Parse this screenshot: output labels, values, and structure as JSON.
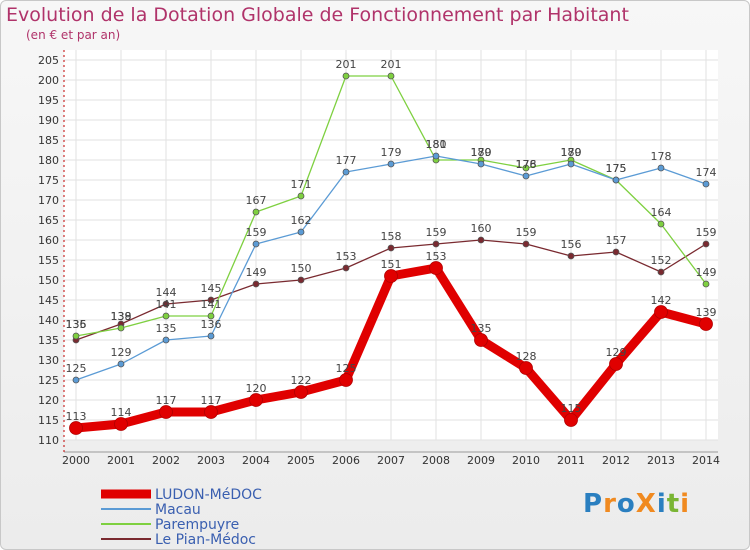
{
  "chart_data": {
    "type": "line",
    "title": "Evolution de la Dotation Globale de Fonctionnement par Habitant",
    "subtitle": "(en € et par an)",
    "x": [
      "2000",
      "2001",
      "2002",
      "2003",
      "2004",
      "2005",
      "2006",
      "2007",
      "2008",
      "2009",
      "2010",
      "2011",
      "2012",
      "2013",
      "2014"
    ],
    "ylim": [
      110,
      205
    ],
    "yticks": [
      110,
      115,
      120,
      125,
      130,
      135,
      140,
      145,
      150,
      155,
      160,
      165,
      170,
      175,
      180,
      185,
      190,
      195,
      200,
      205
    ],
    "grid": true,
    "legend_position": "bottom-left",
    "series": [
      {
        "name": "LUDON-MéDOC",
        "color": "#e00000",
        "values": [
          113,
          114,
          117,
          117,
          120,
          122,
          125,
          151,
          153,
          135,
          128,
          115,
          129,
          142,
          139
        ]
      },
      {
        "name": "Macau",
        "color": "#5b9bd5",
        "values": [
          125,
          129,
          135,
          136,
          159,
          162,
          177,
          179,
          181,
          179,
          176,
          179,
          175,
          178,
          174
        ]
      },
      {
        "name": "Parempuyre",
        "color": "#7ed040",
        "values": [
          136,
          138,
          141,
          141,
          167,
          171,
          201,
          201,
          180,
          180,
          178,
          180,
          175,
          164,
          149
        ]
      },
      {
        "name": "Le Pian-Médoc",
        "color": "#7a2a30",
        "values": [
          135,
          139,
          144,
          145,
          149,
          150,
          153,
          158,
          159,
          160,
          159,
          156,
          157,
          152,
          159
        ]
      }
    ]
  },
  "legend_header": "LUDON-MéDOC",
  "logo": {
    "text": "ProXiti",
    "letters": [
      "P",
      "r",
      "o",
      "X",
      "i",
      "t",
      "i"
    ],
    "colors": [
      "#2a7fc0",
      "#f08a20",
      "#2a7fc0",
      "#f08a20",
      "#2a7fc0",
      "#7ab534",
      "#f08a20"
    ]
  }
}
